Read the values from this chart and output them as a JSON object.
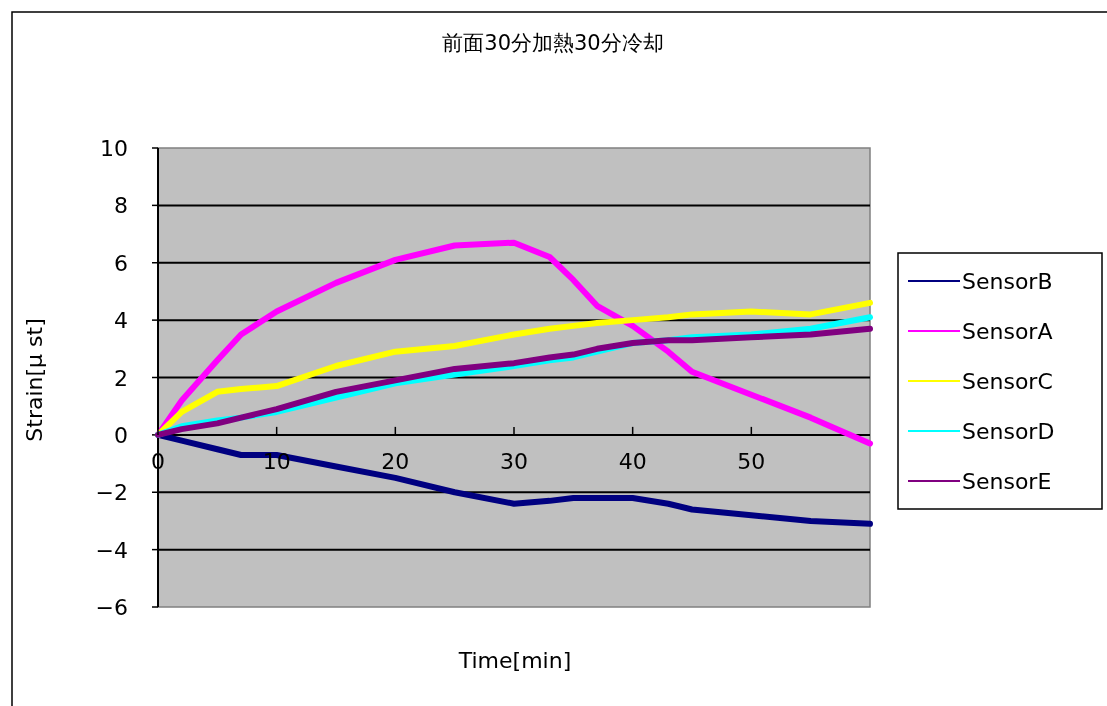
{
  "chart_data": {
    "type": "line",
    "title": "前面30分加熱30分冷却",
    "xlabel": "Time[min]",
    "ylabel": "Strain[μ st]",
    "x": [
      0,
      2,
      5,
      7,
      10,
      15,
      20,
      25,
      30,
      33,
      35,
      37,
      40,
      43,
      45,
      50,
      55,
      60
    ],
    "series": [
      {
        "name": "SensorB",
        "color": "#000080",
        "values": [
          0,
          -0.2,
          -0.5,
          -0.7,
          -0.7,
          -1.1,
          -1.5,
          -2.0,
          -2.4,
          -2.3,
          -2.2,
          -2.2,
          -2.2,
          -2.4,
          -2.6,
          -2.8,
          -3.0,
          -3.1
        ]
      },
      {
        "name": "SensorA",
        "color": "#ff00ff",
        "values": [
          0,
          1.2,
          2.6,
          3.5,
          4.3,
          5.3,
          6.1,
          6.6,
          6.7,
          6.2,
          5.4,
          4.5,
          3.8,
          2.9,
          2.2,
          1.4,
          0.6,
          -0.3
        ]
      },
      {
        "name": "SensorC",
        "color": "#ffff00",
        "values": [
          0,
          0.8,
          1.5,
          1.6,
          1.7,
          2.4,
          2.9,
          3.1,
          3.5,
          3.7,
          3.8,
          3.9,
          4.0,
          4.1,
          4.2,
          4.3,
          4.2,
          4.6
        ]
      },
      {
        "name": "SensorD",
        "color": "#00ffff",
        "values": [
          0,
          0.3,
          0.5,
          0.6,
          0.8,
          1.3,
          1.8,
          2.1,
          2.4,
          2.6,
          2.7,
          2.9,
          3.2,
          3.3,
          3.4,
          3.5,
          3.7,
          4.1
        ]
      },
      {
        "name": "SensorE",
        "color": "#800080",
        "values": [
          0,
          0.2,
          0.4,
          0.6,
          0.9,
          1.5,
          1.9,
          2.3,
          2.5,
          2.7,
          2.8,
          3.0,
          3.2,
          3.3,
          3.3,
          3.4,
          3.5,
          3.7
        ]
      }
    ],
    "xlim": [
      0,
      60
    ],
    "ylim": [
      -6,
      10
    ],
    "xticks": [
      0,
      10,
      20,
      30,
      40,
      50
    ],
    "yticks": [
      -6,
      -4,
      -2,
      0,
      2,
      4,
      6,
      8,
      10
    ],
    "grid": "y",
    "legend": "right"
  }
}
